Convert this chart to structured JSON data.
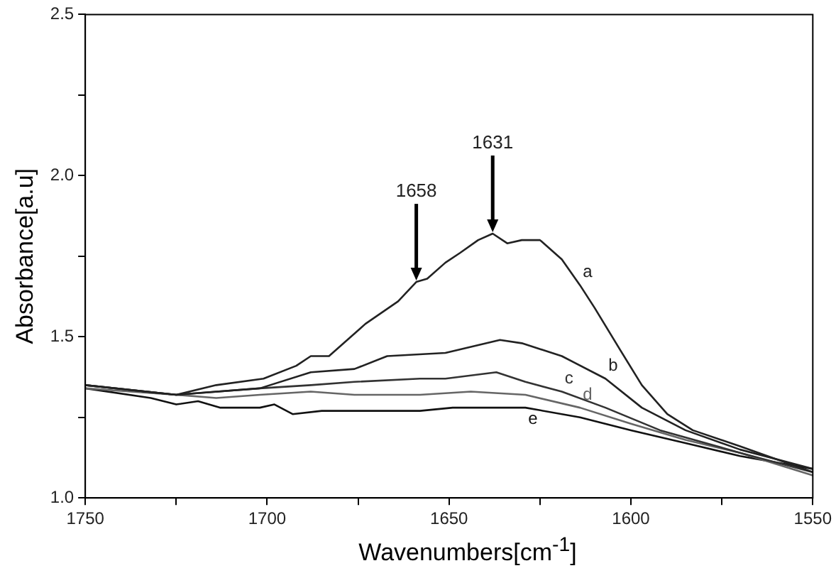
{
  "chart_data": {
    "type": "line",
    "xlabel": "Wavenumbers[cm$^{-1}$]",
    "ylabel": "Absorbance[a.u]",
    "xlim": [
      1750,
      1550
    ],
    "ylim": [
      1.0,
      2.5
    ],
    "xticks": [
      1750,
      {
        "value": 1725,
        "label": null
      },
      1700,
      {
        "value": 1675,
        "label": null
      },
      1650,
      {
        "value": 1625,
        "label": null
      },
      1600,
      {
        "value": 1575,
        "label": null
      },
      1550
    ],
    "yticks": [
      {
        "value": 1.0,
        "label": "1.0"
      },
      {
        "value": 1.25,
        "label": null
      },
      {
        "value": 1.5,
        "label": "1.5"
      },
      {
        "value": 1.75,
        "label": null
      },
      {
        "value": 2.0,
        "label": "2.0"
      },
      {
        "value": 2.25,
        "label": null
      },
      {
        "value": 2.5,
        "label": "2.5"
      }
    ],
    "grid": false,
    "legend": false,
    "marker": "none",
    "line_style": "solid",
    "annotations": [
      {
        "text": "1658",
        "x": 1659,
        "y": 1.67
      },
      {
        "text": "1631",
        "x": 1638,
        "y": 1.82
      }
    ],
    "series": [
      {
        "name": "a",
        "color": "#222222",
        "x": [
          1750,
          1725,
          1714,
          1701,
          1692,
          1688,
          1683,
          1673,
          1664,
          1659,
          1656,
          1651,
          1647,
          1642,
          1638,
          1634,
          1630,
          1625,
          1619,
          1614,
          1610,
          1603,
          1597,
          1590,
          1583,
          1570,
          1560,
          1550
        ],
        "values": [
          1.35,
          1.32,
          1.35,
          1.37,
          1.41,
          1.44,
          1.44,
          1.54,
          1.61,
          1.67,
          1.68,
          1.73,
          1.76,
          1.8,
          1.82,
          1.79,
          1.8,
          1.8,
          1.74,
          1.66,
          1.59,
          1.46,
          1.35,
          1.26,
          1.21,
          1.16,
          1.12,
          1.08
        ]
      },
      {
        "name": "b",
        "color": "#222222",
        "x": [
          1750,
          1725,
          1702,
          1688,
          1676,
          1667,
          1651,
          1636,
          1630,
          1619,
          1607,
          1597,
          1585,
          1570,
          1550
        ],
        "values": [
          1.35,
          1.32,
          1.34,
          1.39,
          1.4,
          1.44,
          1.45,
          1.49,
          1.48,
          1.44,
          1.37,
          1.28,
          1.21,
          1.15,
          1.09
        ]
      },
      {
        "name": "c",
        "color": "#333333",
        "x": [
          1750,
          1725,
          1702,
          1688,
          1676,
          1658,
          1651,
          1637,
          1629,
          1619,
          1607,
          1592,
          1570,
          1550
        ],
        "values": [
          1.35,
          1.32,
          1.34,
          1.35,
          1.36,
          1.37,
          1.37,
          1.39,
          1.36,
          1.33,
          1.28,
          1.21,
          1.14,
          1.08
        ]
      },
      {
        "name": "d",
        "color": "#666666",
        "x": [
          1750,
          1725,
          1714,
          1702,
          1688,
          1676,
          1658,
          1644,
          1629,
          1614,
          1600,
          1585,
          1570,
          1550
        ],
        "values": [
          1.34,
          1.32,
          1.31,
          1.32,
          1.33,
          1.32,
          1.32,
          1.33,
          1.32,
          1.28,
          1.23,
          1.18,
          1.14,
          1.07
        ]
      },
      {
        "name": "e",
        "color": "#111111",
        "x": [
          1750,
          1732,
          1725,
          1719,
          1713,
          1702,
          1698,
          1693,
          1685,
          1673,
          1658,
          1649,
          1629,
          1614,
          1600,
          1585,
          1570,
          1550
        ],
        "values": [
          1.34,
          1.31,
          1.29,
          1.3,
          1.28,
          1.28,
          1.29,
          1.26,
          1.27,
          1.27,
          1.27,
          1.28,
          1.28,
          1.25,
          1.21,
          1.17,
          1.13,
          1.09
        ]
      }
    ]
  }
}
